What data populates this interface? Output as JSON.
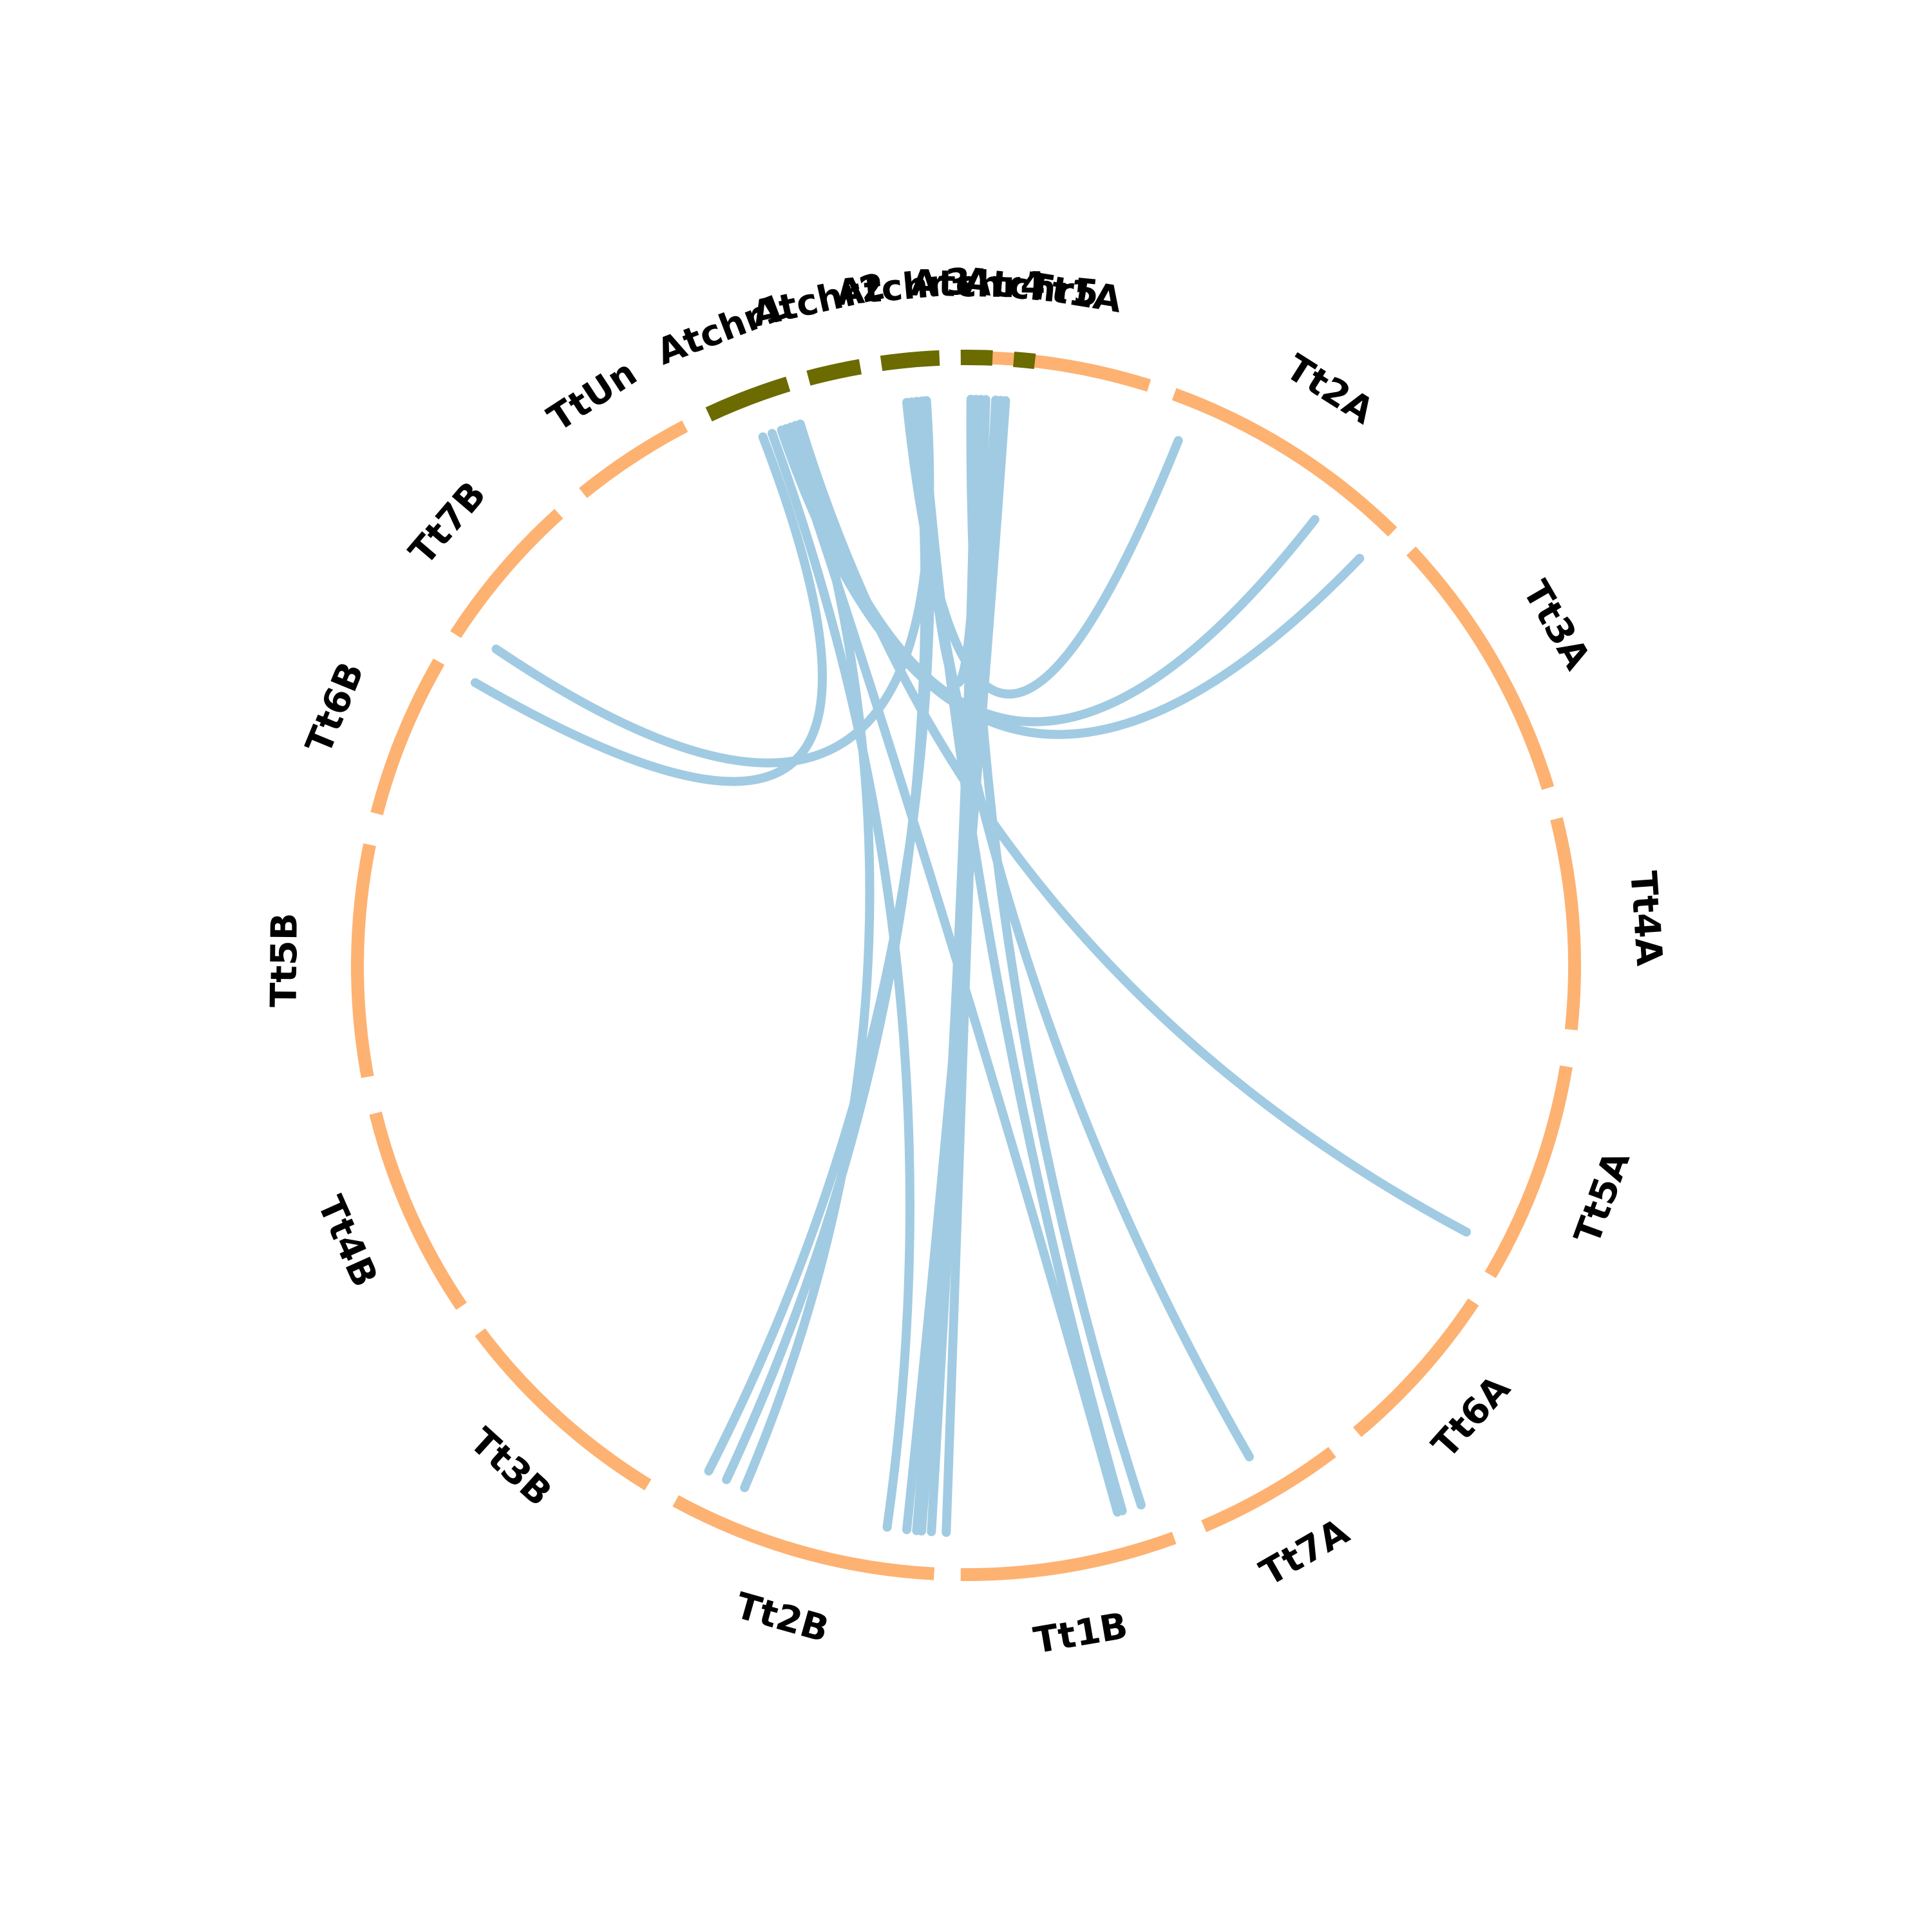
{
  "diagram": {
    "type": "circos-chord",
    "colors": {
      "atchr": "#6b6b00",
      "tt": "#fdb272",
      "link": "#a1cbe2",
      "background": "#ffffff"
    },
    "segments": [
      {
        "id": "Tt1A",
        "label": "Tt1A",
        "group": "tt"
      },
      {
        "id": "Tt2A",
        "label": "Tt2A",
        "group": "tt"
      },
      {
        "id": "Tt3A",
        "label": "Tt3A",
        "group": "tt"
      },
      {
        "id": "Tt4A",
        "label": "Tt4A",
        "group": "tt"
      },
      {
        "id": "Tt5A",
        "label": "Tt5A",
        "group": "tt"
      },
      {
        "id": "Tt6A",
        "label": "Tt6A",
        "group": "tt"
      },
      {
        "id": "Tt7A",
        "label": "Tt7A",
        "group": "tt"
      },
      {
        "id": "Tt1B",
        "label": "Tt1B",
        "group": "tt"
      },
      {
        "id": "Tt2B",
        "label": "Tt2B",
        "group": "tt"
      },
      {
        "id": "Tt3B",
        "label": "Tt3B",
        "group": "tt"
      },
      {
        "id": "Tt4B",
        "label": "Tt4B",
        "group": "tt"
      },
      {
        "id": "Tt5B",
        "label": "Tt5B",
        "group": "tt"
      },
      {
        "id": "Tt6B",
        "label": "Tt6B",
        "group": "tt"
      },
      {
        "id": "Tt7B",
        "label": "Tt7B",
        "group": "tt"
      },
      {
        "id": "TtUn",
        "label": "TtUn",
        "group": "tt"
      },
      {
        "id": "Atchr1",
        "label": "Atchr1",
        "group": "atchr"
      },
      {
        "id": "Atchr2",
        "label": "Atchr2",
        "group": "atchr"
      },
      {
        "id": "Atchr3",
        "label": "Atchr3",
        "group": "atchr"
      },
      {
        "id": "Atchr4",
        "label": "Atchr4",
        "group": "atchr"
      },
      {
        "id": "Atchr5",
        "label": "Atchr5",
        "group": "atchr"
      }
    ],
    "links": [
      {
        "from": "Atchr5",
        "to": "Tt1A"
      },
      {
        "from": "Atchr5",
        "to": "Tt2B"
      },
      {
        "from": "Atchr4",
        "to": "Tt1A"
      },
      {
        "from": "Atchr4",
        "to": "Tt1B"
      },
      {
        "from": "Atchr4",
        "to": "Tt2A"
      },
      {
        "from": "Atchr4",
        "to": "Tt2B"
      },
      {
        "from": "Atchr3",
        "to": "Tt1A"
      },
      {
        "from": "Atchr3",
        "to": "Tt2A"
      },
      {
        "from": "Atchr3",
        "to": "Tt1B"
      },
      {
        "from": "Atchr3",
        "to": "Tt3B"
      },
      {
        "from": "Atchr3",
        "to": "Tt2B"
      },
      {
        "from": "Atchr3",
        "to": "Tt6B"
      },
      {
        "from": "Atchr3",
        "to": "Tt7A"
      },
      {
        "from": "Atchr1",
        "to": "Tt2A"
      },
      {
        "from": "Atchr1",
        "to": "Tt3A"
      },
      {
        "from": "Atchr1",
        "to": "Tt6B"
      },
      {
        "from": "Atchr1",
        "to": "Tt3B"
      },
      {
        "from": "Atchr1",
        "to": "Tt2B"
      },
      {
        "from": "Atchr1",
        "to": "Tt1B"
      },
      {
        "from": "Atchr1",
        "to": "Tt6A"
      }
    ]
  }
}
